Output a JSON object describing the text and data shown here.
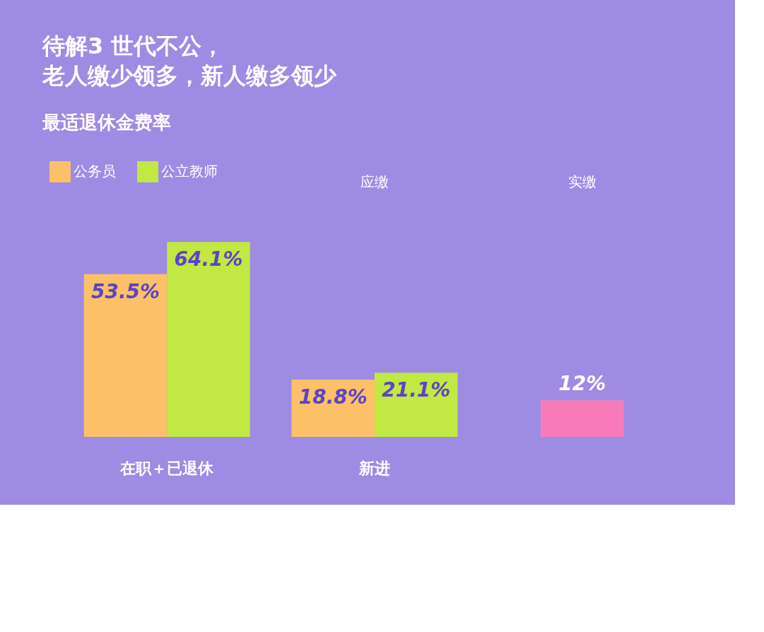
{
  "chart_data": {
    "type": "bar",
    "title": [
      "待解3 世代不公，",
      "老人缴少领多，新人缴多领少"
    ],
    "subtitle": "最适退休金费率",
    "categories": [
      "在职＋已退休",
      "新进",
      null
    ],
    "series": [
      {
        "name": "公务员",
        "color": "#fcc069",
        "values": [
          53.5,
          18.8,
          null
        ],
        "value_labels": [
          "53.5%",
          "18.8%",
          null
        ]
      },
      {
        "name": "公立教师",
        "color": "#c1e843",
        "values": [
          64.1,
          21.1,
          null
        ],
        "value_labels": [
          "64.1%",
          "21.1%",
          null
        ]
      },
      {
        "color": "#f77bb9",
        "values": [
          null,
          null,
          12
        ],
        "value_labels": [
          null,
          null,
          "12%"
        ]
      }
    ],
    "annotations": [
      "应缴",
      "实缴"
    ],
    "grid": false,
    "legend": "top left"
  }
}
